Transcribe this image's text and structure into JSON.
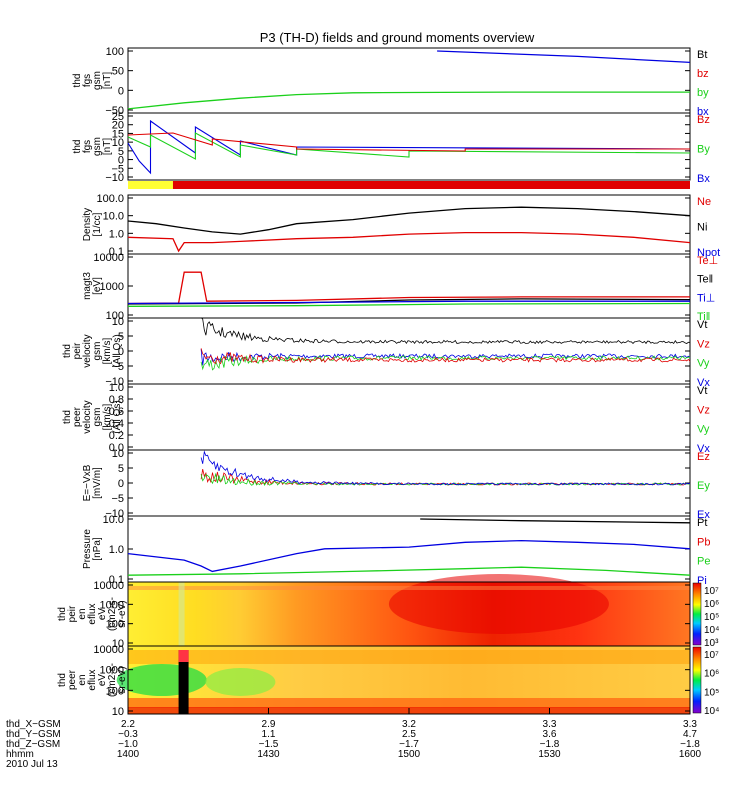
{
  "title": "P3 (TH-D) fields and ground moments overview",
  "colors": {
    "black": "#000000",
    "red": "#e00000",
    "green": "#1bd01b",
    "blue": "#0000e0",
    "yellow": "#ffff33"
  },
  "chart_data": {
    "type": "line",
    "title": "P3 (TH-D) fields and ground moments overview",
    "x_label": "hhmm",
    "date": "2010 Jul 13",
    "x_range": [
      "1400",
      "1600"
    ],
    "panels": [
      {
        "id": "fgs",
        "ylabel": [
          "thd",
          "fgs",
          "gsm",
          "[nT]"
        ],
        "yticks": [
          "100",
          "50",
          "0",
          "−50"
        ],
        "ylim": [
          -55,
          110
        ],
        "legend": [
          "Bt",
          "bz",
          "by",
          "bx"
        ],
        "series": [
          {
            "name": "by",
            "color": "green",
            "points": [
              [
                0,
                -52
              ],
              [
                0.1,
                -35
              ],
              [
                0.2,
                -22
              ],
              [
                0.3,
                -12
              ],
              [
                0.4,
                -7
              ],
              [
                0.5,
                -6
              ],
              [
                0.7,
                -5
              ],
              [
                1,
                -5
              ]
            ]
          },
          {
            "name": "Bt",
            "color": "blue",
            "points": [
              [
                0.55,
                110
              ],
              [
                0.8,
                95
              ],
              [
                1,
                78
              ]
            ]
          }
        ]
      },
      {
        "id": "fgs_dsl",
        "ylabel": [
          "thd",
          "fgs",
          "gsm",
          "[nT]"
        ],
        "yticks": [
          "25",
          "20",
          "15",
          "10",
          "5",
          "0",
          "−5",
          "−10"
        ],
        "ylim": [
          -12,
          26
        ],
        "legend": [
          "Bz",
          "By",
          "Bx"
        ],
        "series": []
      },
      {
        "id": "bar",
        "type": "status-bar",
        "segments": [
          {
            "from": 0,
            "to": 0.08,
            "color": "yellow"
          },
          {
            "from": 0.08,
            "to": 1,
            "color": "red"
          }
        ]
      },
      {
        "id": "density",
        "ylabel": [
          "Density",
          "[1/cc]"
        ],
        "yticks": [
          "100.0",
          "10.0",
          "1.0",
          "0.1"
        ],
        "scale": "log",
        "ylim": [
          0.1,
          100
        ],
        "legend": [
          "Ne",
          "Ni",
          "Npot"
        ],
        "series": [
          {
            "name": "Ni",
            "color": "black",
            "points": [
              [
                0,
                5
              ],
              [
                0.05,
                3.5
              ],
              [
                0.1,
                2
              ],
              [
                0.15,
                1.2
              ],
              [
                0.2,
                0.9
              ],
              [
                0.25,
                1.6
              ],
              [
                0.3,
                3.5
              ],
              [
                0.4,
                6
              ],
              [
                0.5,
                14
              ],
              [
                0.6,
                25
              ],
              [
                0.7,
                30
              ],
              [
                0.8,
                25
              ],
              [
                0.9,
                17
              ],
              [
                1,
                10
              ]
            ]
          },
          {
            "name": "Ne",
            "color": "red",
            "points": [
              [
                0,
                0.6
              ],
              [
                0.08,
                0.5
              ],
              [
                0.09,
                0.1
              ],
              [
                0.1,
                0.3
              ],
              [
                0.15,
                0.3
              ],
              [
                0.2,
                0.35
              ],
              [
                0.3,
                0.5
              ],
              [
                0.4,
                0.6
              ],
              [
                0.5,
                0.9
              ],
              [
                0.6,
                1.1
              ],
              [
                0.7,
                1.1
              ],
              [
                0.8,
                0.9
              ],
              [
                0.9,
                0.6
              ],
              [
                1,
                0.3
              ]
            ]
          }
        ]
      },
      {
        "id": "temp",
        "ylabel": [
          "magt3",
          "[eV]"
        ],
        "yticks": [
          "10000",
          "1000",
          "100"
        ],
        "scale": "log",
        "ylim": [
          100,
          10000
        ],
        "legend": [
          "Te⊥",
          "Te‖",
          "Ti⊥",
          "Ti‖"
        ],
        "series": [
          {
            "name": "Te⊥",
            "color": "red",
            "points": [
              [
                0,
                250
              ],
              [
                0.09,
                260
              ],
              [
                0.1,
                3000
              ],
              [
                0.13,
                3000
              ],
              [
                0.14,
                300
              ],
              [
                0.3,
                320
              ],
              [
                0.5,
                400
              ],
              [
                0.7,
                420
              ],
              [
                1,
                420
              ]
            ]
          },
          {
            "name": "Te‖",
            "color": "black",
            "points": [
              [
                0,
                240
              ],
              [
                0.3,
                260
              ],
              [
                0.5,
                330
              ],
              [
                0.7,
                360
              ],
              [
                1,
                340
              ]
            ]
          },
          {
            "name": "Ti⊥",
            "color": "blue",
            "points": [
              [
                0,
                250
              ],
              [
                0.3,
                270
              ],
              [
                0.6,
                300
              ],
              [
                1,
                300
              ]
            ]
          },
          {
            "name": "Ti‖",
            "color": "green",
            "points": [
              [
                0,
                200
              ],
              [
                0.3,
                210
              ],
              [
                0.6,
                240
              ],
              [
                1,
                250
              ]
            ]
          }
        ]
      },
      {
        "id": "peir_vel",
        "ylabel": [
          "thd",
          "peir",
          "velocity",
          "gsm",
          "[km/s]",
          "(All Qs)"
        ],
        "yticks": [
          "10",
          "5",
          "0",
          "−5",
          "−10"
        ],
        "ylim": [
          -12,
          12
        ],
        "legend": [
          "Vt",
          "Vz",
          "Vy",
          "Vx"
        ],
        "series": []
      },
      {
        "id": "peer_vel",
        "ylabel": [
          "thd",
          "peer",
          "velocity",
          "gsm",
          "[km/s]",
          "(All Qs)"
        ],
        "yticks": [
          "1.0",
          "0.8",
          "0.6",
          "0.4",
          "0.2",
          "0.0"
        ],
        "ylim": [
          0,
          1
        ],
        "legend": [
          "Vt",
          "Vz",
          "Vy",
          "Vx"
        ],
        "series": []
      },
      {
        "id": "efield",
        "ylabel": [
          "E=−VxB",
          "[mV/m]"
        ],
        "yticks": [
          "10",
          "5",
          "0",
          "−5",
          "−10"
        ],
        "ylim": [
          -12,
          12
        ],
        "legend": [
          "Ez",
          "Ey",
          "Ex"
        ],
        "series": []
      },
      {
        "id": "pressure",
        "ylabel": [
          "Pressure",
          "[nPa]"
        ],
        "yticks": [
          "10.0",
          "1.0",
          "0.1"
        ],
        "scale": "log",
        "ylim": [
          0.02,
          12
        ],
        "legend": [
          "Pt",
          "Pb",
          "Pe",
          "Pi"
        ],
        "series": [
          {
            "name": "Pi",
            "color": "blue",
            "points": [
              [
                0,
                0.3
              ],
              [
                0.1,
                0.15
              ],
              [
                0.13,
                0.08
              ],
              [
                0.15,
                0.045
              ],
              [
                0.2,
                0.08
              ],
              [
                0.3,
                0.3
              ],
              [
                0.35,
                0.5
              ],
              [
                0.5,
                0.6
              ],
              [
                0.6,
                1
              ],
              [
                0.7,
                1.2
              ],
              [
                0.8,
                1
              ],
              [
                0.9,
                0.8
              ],
              [
                1,
                0.5
              ]
            ]
          },
          {
            "name": "Pe",
            "color": "green",
            "points": [
              [
                0,
                0.03
              ],
              [
                0.2,
                0.035
              ],
              [
                0.4,
                0.045
              ],
              [
                0.6,
                0.06
              ],
              [
                0.7,
                0.07
              ],
              [
                0.85,
                0.05
              ],
              [
                1,
                0.03
              ]
            ]
          },
          {
            "name": "Pt",
            "color": "black",
            "points": [
              [
                0.52,
                12
              ],
              [
                0.7,
                10
              ],
              [
                1,
                8
              ]
            ]
          }
        ]
      },
      {
        "id": "peir_spec",
        "type": "heatmap",
        "ylabel": [
          "thd",
          "peir",
          "en",
          "eflux",
          "eV",
          "(cm2-s-",
          "sr-eV)"
        ],
        "yticks": [
          "10000",
          "1000",
          "100",
          "10"
        ],
        "cbar_ticks": [
          "10⁷",
          "10⁶",
          "10⁵",
          "10⁴",
          "10³"
        ]
      },
      {
        "id": "peer_spec",
        "type": "heatmap",
        "ylabel": [
          "thd",
          "peer",
          "en",
          "eflux",
          "eV",
          "(cm2-s-",
          "sr-eV)"
        ],
        "yticks": [
          "10000",
          "1000",
          "100",
          "10"
        ],
        "cbar_ticks": [
          "10⁷",
          "10⁶",
          "10⁵",
          "10⁴"
        ]
      }
    ],
    "xaxis": {
      "rows": [
        {
          "label": "thd_X−GSM",
          "values": [
            "2.2",
            "2.9",
            "3.2",
            "3.3",
            "3.3"
          ]
        },
        {
          "label": "thd_Y−GSM",
          "values": [
            "−0.3",
            "1.1",
            "2.5",
            "3.6",
            "4.7"
          ]
        },
        {
          "label": "thd_Z−GSM",
          "values": [
            "−1.0",
            "−1.5",
            "−1.7",
            "−1.8",
            "−1.8"
          ]
        },
        {
          "label": "hhmm",
          "values": [
            "1400",
            "1430",
            "1500",
            "1530",
            "1600"
          ]
        }
      ],
      "date": "2010 Jul 13"
    }
  }
}
